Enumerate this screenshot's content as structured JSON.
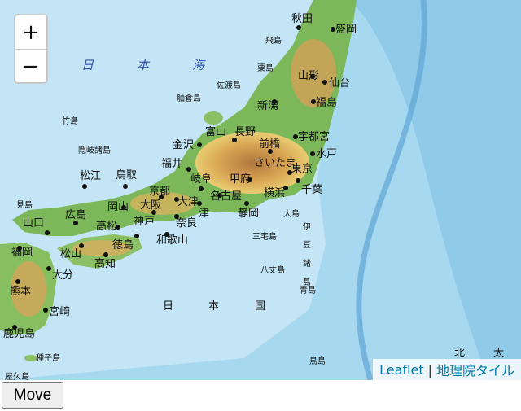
{
  "map": {
    "zoom_in_label": "+",
    "zoom_out_label": "−",
    "attribution": {
      "leaflet": "Leaflet",
      "separator": "|",
      "tiles": "地理院タイル"
    },
    "sea_labels": [
      "日",
      "本",
      "海"
    ],
    "ocean_labels": [
      "日",
      "本",
      "国"
    ],
    "corner_labels": [
      "北",
      "太"
    ],
    "izu_labels": [
      "伊",
      "豆",
      "諸",
      "島"
    ],
    "prefecture_capitals": {
      "akita": "秋田",
      "morioka": "盛岡",
      "yamagata": "山形",
      "sendai": "仙台",
      "niigata": "新潟",
      "fukushima": "福島",
      "utsunomiya": "宇都宮",
      "mito": "水戸",
      "maebashi": "前橋",
      "saitama": "さいたま",
      "tokyo": "東京",
      "chiba": "千葉",
      "yokohama": "横浜",
      "kofu": "甲府",
      "nagano": "長野",
      "toyama": "富山",
      "kanazawa": "金沢",
      "fukui": "福井",
      "gifu": "岐阜",
      "nagoya": "名古屋",
      "shizuoka": "静岡",
      "tsu": "津",
      "otsu": "大津",
      "kyoto": "京都",
      "osaka": "大阪",
      "kobe": "神戸",
      "nara": "奈良",
      "wakayama": "和歌山",
      "tottori": "鳥取",
      "matsue": "松江",
      "okayama": "岡山",
      "hiroshima": "広島",
      "yamaguchi": "山口",
      "takamatsu": "高松",
      "tokushima": "徳島",
      "matsuyama": "松山",
      "kochi": "高知",
      "fukuoka": "福岡",
      "oita": "大分",
      "kumamoto": "熊本",
      "miyazaki": "宮崎",
      "kagoshima": "鹿児島"
    },
    "islands": {
      "tobishima": "飛島",
      "awashima": "粟島",
      "sado": "佐渡島",
      "hegura": "舳倉島",
      "takeshima": "竹島",
      "oki": "隠岐諸島",
      "mishima": "見島",
      "oshima": "大島",
      "miyake": "三宅島",
      "hachijo": "八丈島",
      "aogashima": "青島",
      "tanegashima": "種子島",
      "yakushima": "屋久島",
      "torishima": "鳥島"
    }
  },
  "controls": {
    "move_label": "Move"
  }
}
